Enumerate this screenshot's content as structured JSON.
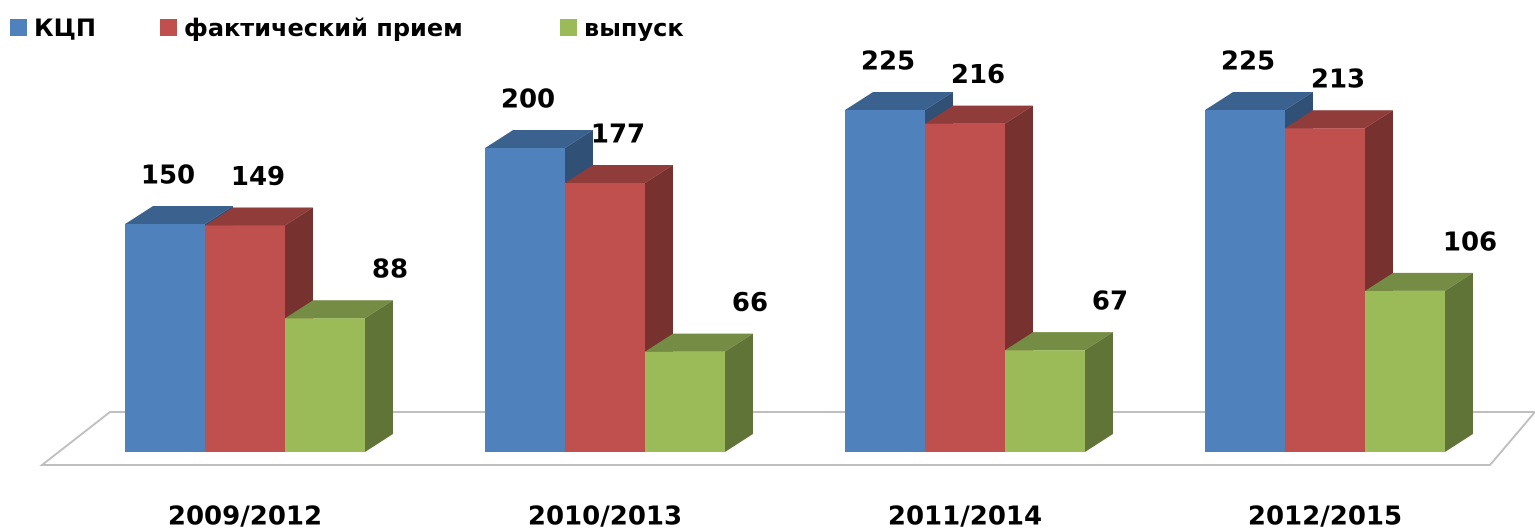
{
  "chart_data": {
    "type": "bar3d",
    "categories": [
      "2009/2012",
      "2010/2013",
      "2011/2014",
      "2012/2015"
    ],
    "series": [
      {
        "name": "КЦП",
        "color": "#4f81bd",
        "values": [
          150,
          200,
          225,
          225
        ]
      },
      {
        "name": "фактический прием",
        "color": "#c0504d",
        "values": [
          149,
          177,
          216,
          213
        ]
      },
      {
        "name": "выпуск",
        "color": "#9bbb59",
        "values": [
          88,
          66,
          67,
          106
        ]
      }
    ],
    "legend": "top-left"
  }
}
